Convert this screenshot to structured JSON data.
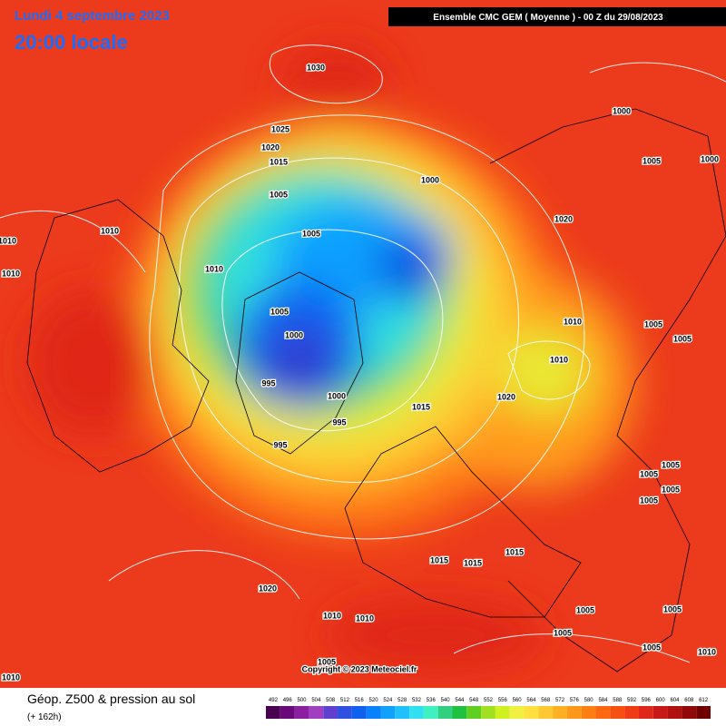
{
  "header": {
    "date": "Lundi 4 septembre 2023",
    "time": "20:00 locale",
    "model": "Ensemble CMC GEM  ( Moyenne )  -  00 Z du 29/08/2023"
  },
  "map": {
    "isobar_labels": [
      "1030",
      "1025",
      "1020",
      "1015",
      "1005",
      "1010",
      "1010",
      "1010",
      "1010",
      "1005",
      "1000",
      "1000",
      "1005",
      "1000",
      "1020",
      "1005",
      "1000",
      "995",
      "1000",
      "995",
      "995",
      "1015",
      "1020",
      "1010",
      "1010",
      "1005",
      "1005",
      "1005",
      "1005",
      "1005",
      "1005",
      "1015",
      "1015",
      "1015",
      "1020",
      "1010",
      "1010",
      "1005",
      "1005",
      "1005",
      "1005",
      "1010",
      "1005",
      "1010"
    ],
    "copyright": "Copyright © 2023 Meteociel.fr"
  },
  "footer": {
    "title": "Géop. Z500 & pression au sol",
    "lead": "(+ 162h)",
    "scale": {
      "labels": [
        492,
        496,
        500,
        504,
        508,
        512,
        516,
        520,
        524,
        528,
        532,
        536,
        540,
        544,
        548,
        552,
        556,
        560,
        564,
        568,
        572,
        576,
        580,
        584,
        588,
        592,
        596,
        600,
        604,
        608,
        612
      ],
      "colors": [
        "#4a0050",
        "#6a0a7a",
        "#8a20a0",
        "#a040c0",
        "#6040d0",
        "#3050e0",
        "#1060f0",
        "#0a80ff",
        "#10a0ff",
        "#20c0ff",
        "#30e0f0",
        "#40f0c0",
        "#30d080",
        "#20c040",
        "#60d020",
        "#a0e020",
        "#d0f020",
        "#f0f040",
        "#ffe040",
        "#ffc830",
        "#ffb020",
        "#ff9818",
        "#ff8010",
        "#ff6810",
        "#f85010",
        "#f03c14",
        "#e02818",
        "#c81818",
        "#b01010",
        "#900808",
        "#700000"
      ]
    }
  }
}
